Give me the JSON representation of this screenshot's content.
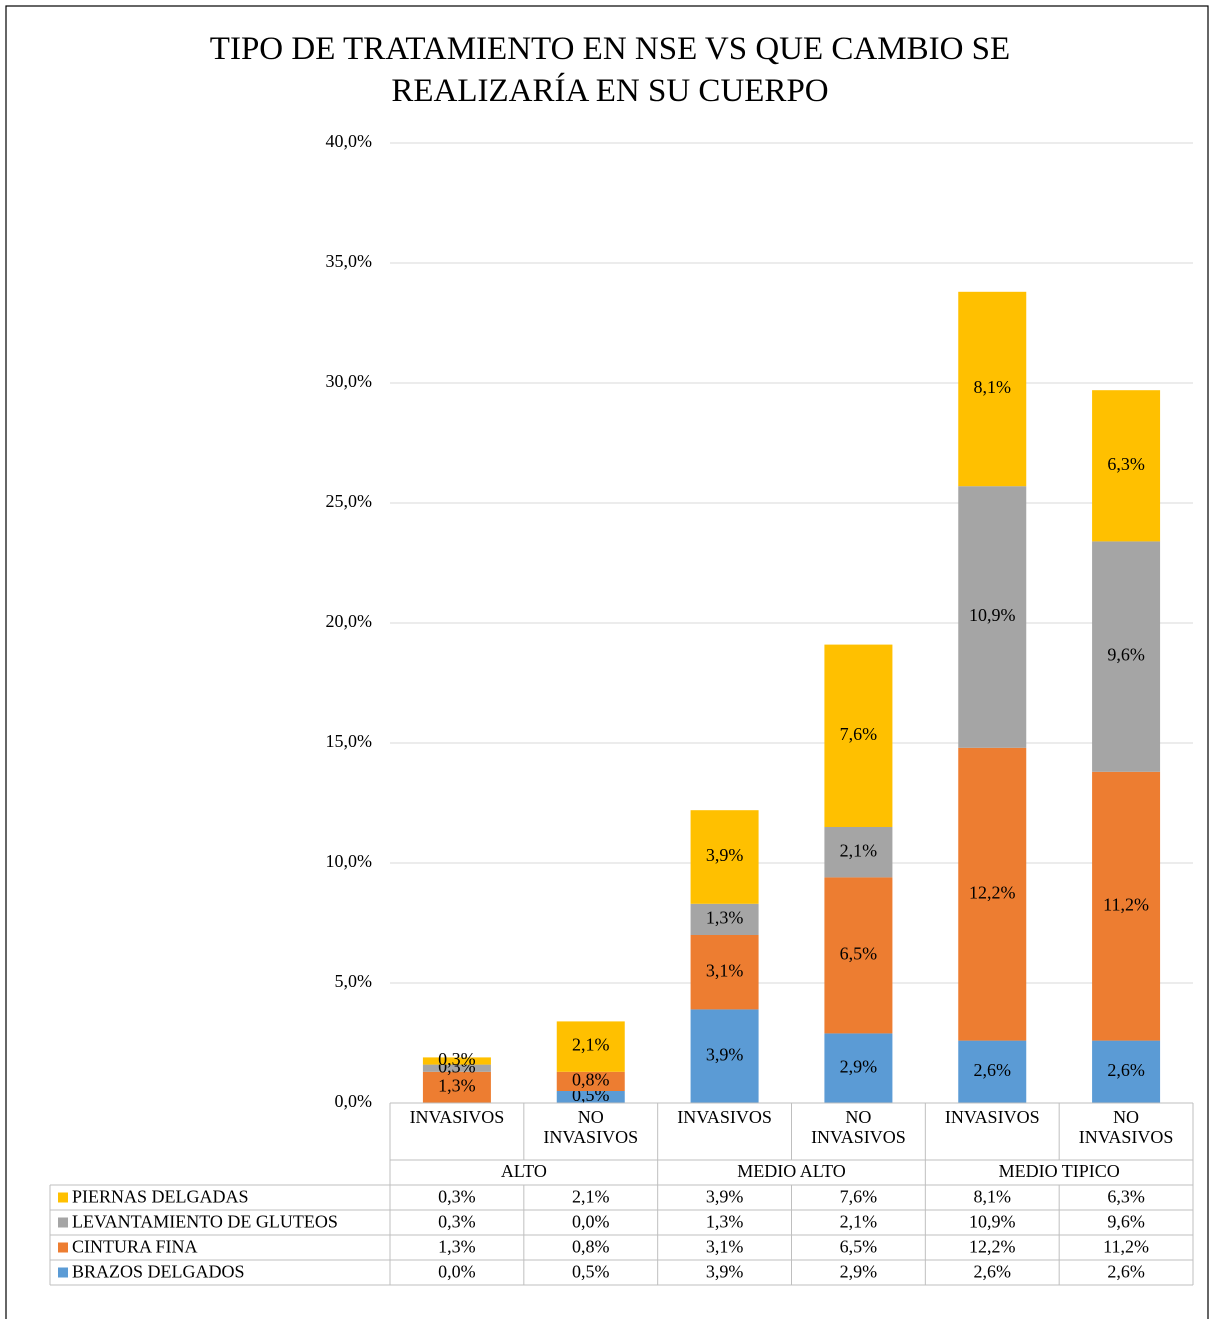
{
  "chart_data": {
    "type": "stacked_bar",
    "title": "TIPO DE TRATAMIENTO EN NSE VS QUE CAMBIO SE REALIZARÍA EN SU CUERPO",
    "categories": [
      "INVASIVOS",
      "NO INVASIVOS",
      "INVASIVOS",
      "NO INVASIVOS",
      "INVASIVOS",
      "NO INVASIVOS"
    ],
    "groups": [
      "ALTO",
      "MEDIO ALTO",
      "MEDIO TIPICO"
    ],
    "series": [
      {
        "name": "BRAZOS DELGADOS",
        "color": "#5b9bd5",
        "values": [
          0.0,
          0.5,
          3.9,
          2.9,
          2.6,
          2.6
        ],
        "value_labels": [
          "0,0%",
          "0,5%",
          "3,9%",
          "2,9%",
          "2,6%",
          "2,6%"
        ]
      },
      {
        "name": "CINTURA FINA",
        "color": "#ed7d31",
        "values": [
          1.3,
          0.8,
          3.1,
          6.5,
          12.2,
          11.2
        ],
        "value_labels": [
          "1,3%",
          "0,8%",
          "3,1%",
          "6,5%",
          "12,2%",
          "11,2%"
        ]
      },
      {
        "name": "LEVANTAMIENTO DE GLUTEOS",
        "color": "#a5a5a5",
        "values": [
          0.3,
          0.0,
          1.3,
          2.1,
          10.9,
          9.6
        ],
        "value_labels": [
          "0,3%",
          "0,0%",
          "1,3%",
          "2,1%",
          "10,9%",
          "9,6%"
        ]
      },
      {
        "name": "PIERNAS DELGADAS",
        "color": "#ffc000",
        "values": [
          0.3,
          2.1,
          3.9,
          7.6,
          8.1,
          6.3
        ],
        "value_labels": [
          "0,3%",
          "2,1%",
          "3,9%",
          "7,6%",
          "8,1%",
          "6,3%"
        ]
      }
    ],
    "ylim": [
      0,
      40
    ],
    "yticks": [
      {
        "value": 0,
        "label": "0,0%"
      },
      {
        "value": 5,
        "label": "5,0%"
      },
      {
        "value": 10,
        "label": "10,0%"
      },
      {
        "value": 15,
        "label": "15,0%"
      },
      {
        "value": 20,
        "label": "20,0%"
      },
      {
        "value": 25,
        "label": "25,0%"
      },
      {
        "value": 30,
        "label": "30,0%"
      },
      {
        "value": 35,
        "label": "35,0%"
      },
      {
        "value": 40,
        "label": "40,0%"
      }
    ],
    "grid": true,
    "data_table": true
  }
}
